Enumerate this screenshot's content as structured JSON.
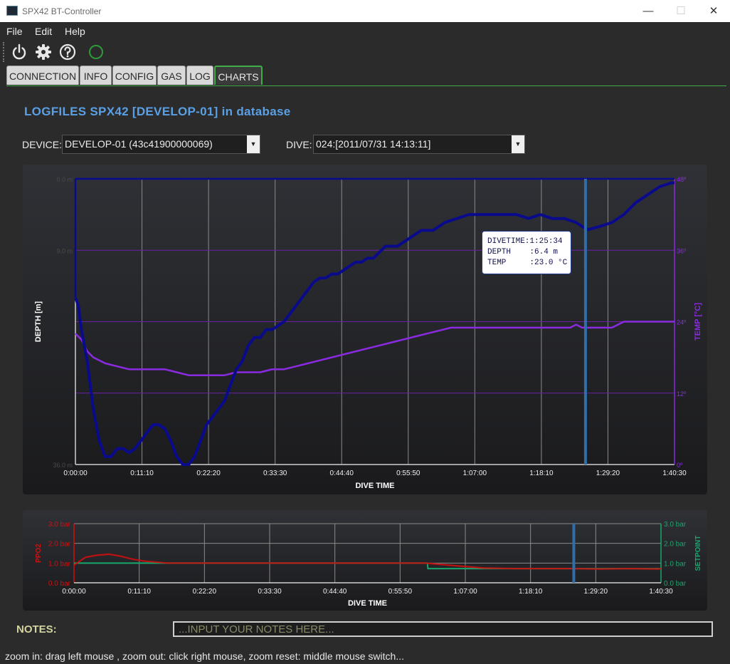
{
  "window": {
    "title": "SPX42 BT-Controller",
    "minimize": "—",
    "maximize": "☐",
    "close": "✕"
  },
  "menu": [
    "File",
    "Edit",
    "Help"
  ],
  "toolbar": {
    "icons": [
      "power-icon",
      "gear-icon",
      "help-icon",
      "connection-status-icon"
    ]
  },
  "tabs": [
    {
      "label": "CONNECTION",
      "active": false
    },
    {
      "label": "INFO",
      "active": false
    },
    {
      "label": "CONFIG",
      "active": false
    },
    {
      "label": "GAS",
      "active": false
    },
    {
      "label": "LOG",
      "active": false
    },
    {
      "label": "CHARTS",
      "active": true
    }
  ],
  "heading": "LOGFILES SPX42 [DEVELOP-01] in database",
  "device": {
    "label": "DEVICE:",
    "value": "DEVELOP-01 (43c41900000069)"
  },
  "dive": {
    "label": "DIVE:",
    "value": "024:[2011/07/31 14:13:11]"
  },
  "tooltip": {
    "divetime": "DIVETIME:1:25:34",
    "depth": "DEPTH    :6.4 m",
    "temp": "TEMP     :23.0 °C"
  },
  "notes": {
    "label": "NOTES:",
    "placeholder": "...INPUT YOUR NOTES HERE..."
  },
  "status": "zoom in: drag left mouse , zoom out: click right mouse, zoom reset: middle mouse switch...",
  "colors": {
    "depth": "#0a0a8c",
    "temp": "#8a2be2",
    "ppo2": "#cc1010",
    "setpoint": "#17a66b",
    "cursor": "#2f6ea8",
    "heading": "#5aa0e6",
    "tab_active_border": "#3fae49"
  },
  "chart_data": [
    {
      "type": "line",
      "title": "",
      "xlabel": "DIVE TIME",
      "ylabel": "DEPTH [m]",
      "y2label": "TEMP [°C]",
      "x_tick_labels": [
        "0:00:00",
        "0:11:10",
        "0:22:20",
        "0:33:30",
        "0:44:40",
        "0:55:50",
        "1:07:00",
        "1:18:10",
        "1:29:20",
        "1:40:30"
      ],
      "y_tick_labels": [
        "0.0 m",
        "9.0 m",
        "",
        "",
        "36.0 m"
      ],
      "y2_tick_labels": [
        "48º",
        "36º",
        "24º",
        "12º",
        "0º"
      ],
      "xlim_minutes": [
        0,
        100.5
      ],
      "ylim": [
        0,
        36
      ],
      "y2lim": [
        0,
        48
      ],
      "cursor_minutes": 85.57,
      "series": [
        {
          "axis": "depth",
          "x": [
            0,
            0.5,
            1,
            2,
            3,
            4,
            5,
            6,
            7,
            8,
            9,
            10,
            11,
            12,
            13,
            14,
            15,
            16,
            17,
            18,
            19,
            20,
            21,
            22,
            23,
            24,
            25,
            26,
            27,
            28,
            29,
            30,
            31,
            32,
            33,
            34,
            35,
            36,
            37,
            38,
            39,
            40,
            41,
            42,
            43,
            44,
            45,
            46,
            47,
            48,
            49,
            50,
            52,
            54,
            56,
            58,
            60,
            62,
            64,
            66,
            68,
            70,
            72,
            74,
            76,
            78,
            80,
            82,
            84,
            85,
            86,
            88,
            90,
            92,
            94,
            96,
            98,
            100,
            100.5
          ],
          "y": [
            15,
            16,
            19,
            23,
            29,
            33,
            35,
            35,
            34,
            34,
            34.5,
            34,
            33,
            32,
            31,
            31,
            31.5,
            33,
            35,
            36,
            36,
            35,
            33,
            31,
            30,
            29,
            28,
            26,
            24,
            23,
            21,
            20,
            20,
            19,
            19,
            18.5,
            18,
            17,
            16,
            15,
            14,
            13,
            12.5,
            12.5,
            12,
            12,
            11.5,
            11,
            10.5,
            10.5,
            10,
            10,
            8.5,
            8.5,
            7.5,
            6.5,
            6.5,
            5.5,
            5,
            4.5,
            4.5,
            4.5,
            4.5,
            4.5,
            5,
            4.5,
            5,
            5,
            5.5,
            6,
            6.4,
            6,
            5.5,
            4.5,
            3,
            2,
            1,
            0.5,
            0.5
          ]
        },
        {
          "axis": "temp",
          "x": [
            0,
            1,
            2,
            3,
            4,
            5,
            7,
            9,
            11,
            13,
            15,
            17,
            19,
            21,
            23,
            25,
            27,
            29,
            31,
            33,
            35,
            37,
            39,
            41,
            43,
            45,
            47,
            49,
            51,
            53,
            55,
            57,
            59,
            61,
            63,
            65,
            67,
            69,
            71,
            73,
            75,
            77,
            79,
            81,
            83,
            84,
            85,
            86,
            88,
            90,
            92,
            94,
            96,
            98,
            100,
            100.5
          ],
          "y": [
            22,
            21,
            19,
            18,
            17.5,
            17,
            16.5,
            16,
            16,
            16,
            16,
            15.5,
            15,
            15,
            15,
            15,
            15.5,
            15.5,
            15.5,
            16,
            16,
            16.5,
            17,
            17.5,
            18,
            18.5,
            19,
            19.5,
            20,
            20.5,
            21,
            21.5,
            22,
            22.5,
            23,
            23,
            23,
            23,
            23,
            23,
            23,
            23,
            23,
            23,
            23,
            23.5,
            23,
            23,
            23,
            23,
            24,
            24,
            24,
            24,
            24,
            24
          ]
        }
      ]
    },
    {
      "type": "line",
      "title": "",
      "xlabel": "DIVE TIME",
      "ylabel": "PPO2",
      "y2label": "SETPOINT",
      "x_tick_labels": [
        "0:00:00",
        "0:11:10",
        "0:22:20",
        "0:33:30",
        "0:44:40",
        "0:55:50",
        "1:07:00",
        "1:18:10",
        "1:29:20",
        "1:40:30"
      ],
      "y_tick_labels": [
        "3.0 bar",
        "2.0 bar",
        "1.0 bar",
        "0.0 bar"
      ],
      "y2_tick_labels": [
        "3.0 bar",
        "2.0 bar",
        "1.0 bar",
        "0.0 bar"
      ],
      "xlim_minutes": [
        0,
        100.5
      ],
      "ylim": [
        0,
        3
      ],
      "cursor_minutes": 85.57,
      "series": [
        {
          "name": "PPO2",
          "x": [
            0,
            1,
            2,
            4,
            6,
            8,
            10,
            12,
            14,
            16,
            20,
            30,
            40,
            50,
            60,
            61,
            62,
            64,
            66,
            68,
            70,
            75,
            80,
            85,
            90,
            95,
            100,
            100.5
          ],
          "y": [
            0.9,
            1.1,
            1.3,
            1.4,
            1.45,
            1.35,
            1.2,
            1.1,
            1.05,
            1.0,
            1.0,
            1.0,
            1.0,
            1.0,
            1.0,
            0.98,
            0.95,
            0.9,
            0.85,
            0.8,
            0.75,
            0.72,
            0.72,
            0.72,
            0.7,
            0.72,
            0.7,
            0.72
          ]
        },
        {
          "name": "SETPOINT",
          "x": [
            0,
            1,
            60.5,
            60.6,
            100.5
          ],
          "y": [
            1.0,
            1.0,
            1.0,
            0.72,
            0.72
          ]
        }
      ]
    }
  ]
}
